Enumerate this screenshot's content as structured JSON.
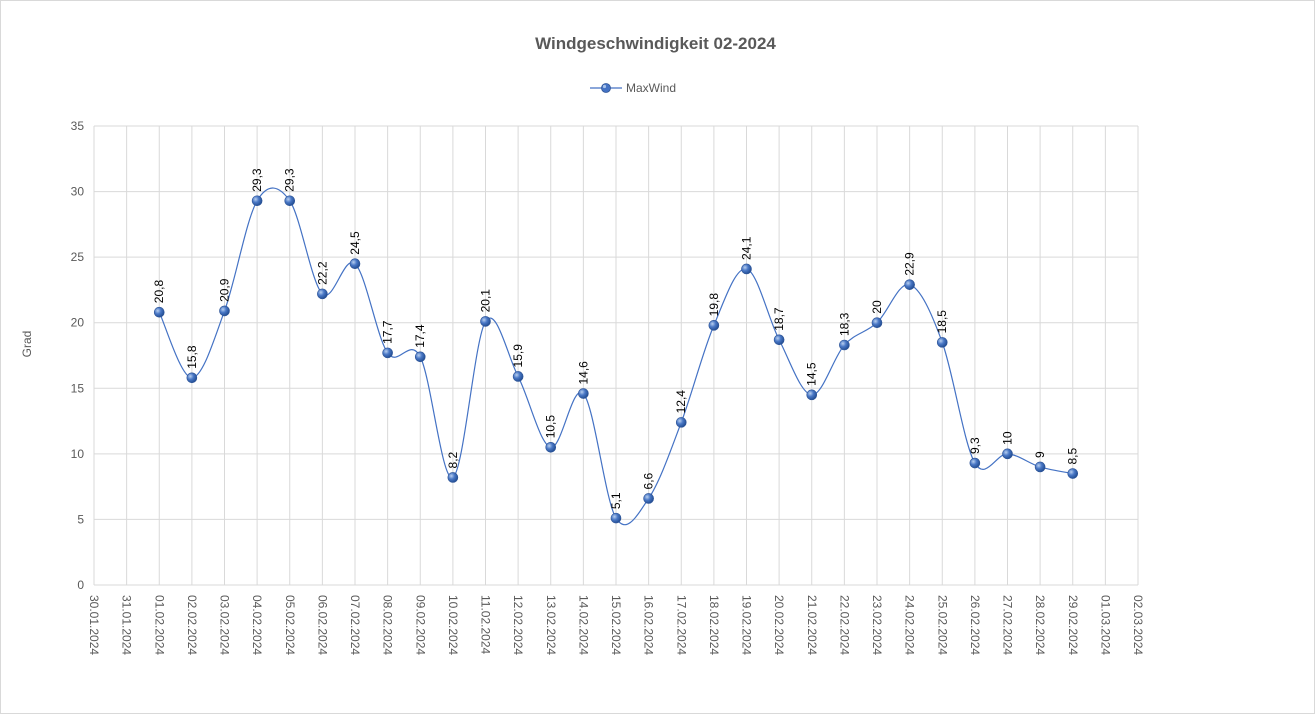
{
  "chart_data": {
    "type": "line",
    "title": "Windgeschwindigkeit  02-2024",
    "ylabel": "Grad",
    "xlabel": "",
    "ylim": [
      0,
      35
    ],
    "yticks": [
      0,
      5,
      10,
      15,
      20,
      25,
      30,
      35
    ],
    "grid": true,
    "smooth": true,
    "legend_position": "top-center",
    "categories": [
      "30.01.2024",
      "31.01.2024",
      "01.02.2024",
      "02.02.2024",
      "03.02.2024",
      "04.02.2024",
      "05.02.2024",
      "06.02.2024",
      "07.02.2024",
      "08.02.2024",
      "09.02.2024",
      "10.02.2024",
      "11.02.2024",
      "12.02.2024",
      "13.02.2024",
      "14.02.2024",
      "15.02.2024",
      "16.02.2024",
      "17.02.2024",
      "18.02.2024",
      "19.02.2024",
      "20.02.2024",
      "21.02.2024",
      "22.02.2024",
      "23.02.2024",
      "24.02.2024",
      "25.02.2024",
      "26.02.2024",
      "27.02.2024",
      "28.02.2024",
      "29.02.2024",
      "01.03.2024",
      "02.03.2024"
    ],
    "series": [
      {
        "name": "MaxWind",
        "color": "#4472c4",
        "values": [
          null,
          null,
          20.8,
          15.8,
          20.9,
          29.3,
          29.3,
          22.2,
          24.5,
          17.7,
          17.4,
          8.2,
          20.1,
          15.9,
          10.5,
          14.6,
          5.1,
          6.6,
          12.4,
          19.8,
          24.1,
          18.7,
          14.5,
          18.3,
          20,
          22.9,
          18.5,
          9.3,
          10,
          9,
          8.5,
          null,
          null
        ],
        "labels": [
          "",
          "",
          "20,8",
          "15,8",
          "20,9",
          "29,3",
          "29,3",
          "22,2",
          "24,5",
          "17,7",
          "17,4",
          "8,2",
          "20,1",
          "15,9",
          "10,5",
          "14,6",
          "5,1",
          "6,6",
          "12,4",
          "19,8",
          "24,1",
          "18,7",
          "14,5",
          "18,3",
          "20",
          "22,9",
          "18,5",
          "9,3",
          "10",
          "9",
          "8,5",
          "",
          ""
        ]
      }
    ]
  }
}
